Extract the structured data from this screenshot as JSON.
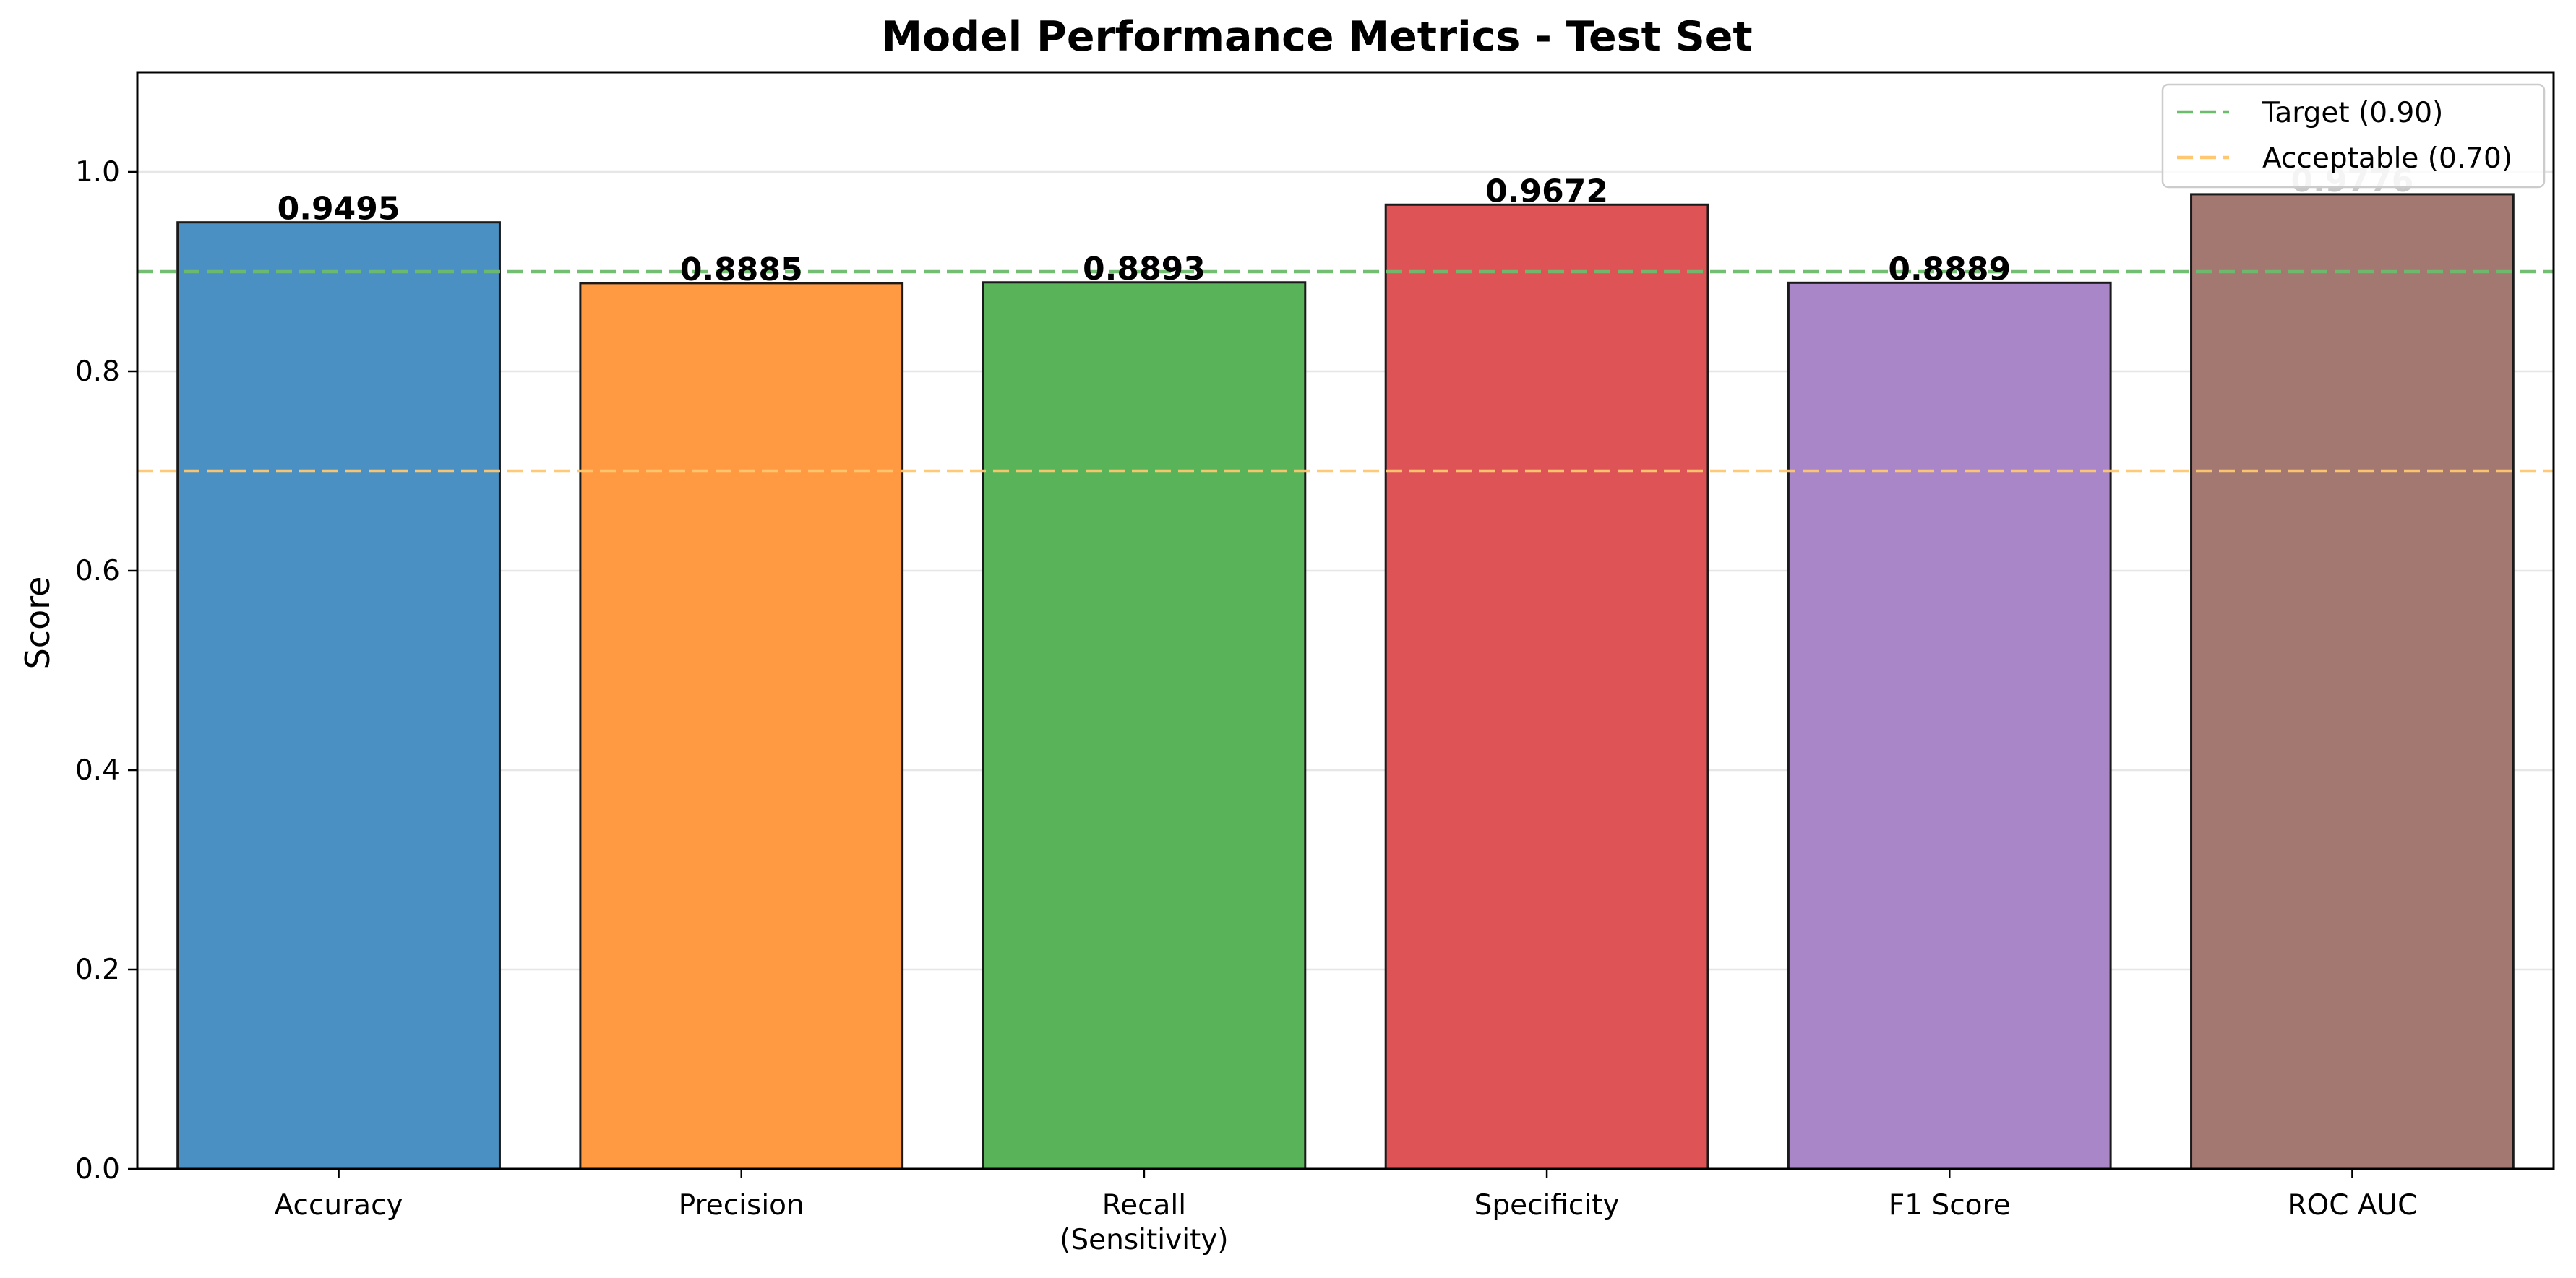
{
  "chart_data": {
    "type": "bar",
    "title": "Model Performance Metrics - Test Set",
    "xlabel": "",
    "ylabel": "Score",
    "ylim": [
      0,
      1.1
    ],
    "yticks": [
      "0.0",
      "0.2",
      "0.4",
      "0.6",
      "0.8",
      "1.0"
    ],
    "grid": "horizontal",
    "legend_position": "top-right",
    "categories": [
      [
        "Accuracy"
      ],
      [
        "Precision"
      ],
      [
        "Recall",
        "(Sensitivity)"
      ],
      [
        "Specificity"
      ],
      [
        "F1 Score"
      ],
      [
        "ROC AUC"
      ]
    ],
    "values": [
      0.9495,
      0.8885,
      0.8893,
      0.9672,
      0.8889,
      0.9776
    ],
    "value_labels": [
      "0.9495",
      "0.8885",
      "0.8893",
      "0.9672",
      "0.8889",
      "0.9776"
    ],
    "bar_colors": [
      "#4a90c2",
      "#ff9a42",
      "#59b459",
      "#de5456",
      "#a886c7",
      "#a27870"
    ],
    "reference_lines": [
      {
        "label": "Target (0.90)",
        "value": 0.9,
        "color": "#6dbb6d"
      },
      {
        "label": "Acceptable (0.70)",
        "value": 0.7,
        "color": "#ffc870"
      }
    ]
  }
}
